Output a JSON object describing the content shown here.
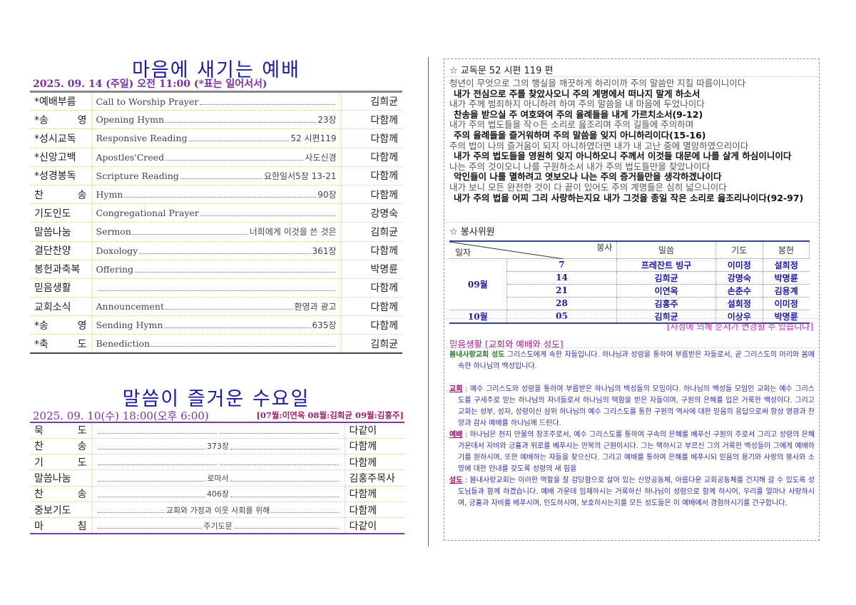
{
  "sunday": {
    "title": "마음에 새기는 예배",
    "date": "2025. 09. 14 (주일) 오전 11:00 (*표는 일어서서)",
    "rows": [
      {
        "label": "*예배부름",
        "en": "Call to Worship Prayer",
        "detail": "",
        "who": "김희균"
      },
      {
        "label": "*송 영",
        "en": "Opening Hymn",
        "detail": "23장",
        "who": "다함께"
      },
      {
        "label": "*성시교독",
        "en": "Responsive Reading",
        "detail": "52 시편119",
        "who": "다함께"
      },
      {
        "label": "*신앙고백",
        "en": "Apostles'Creed",
        "detail": "사도신경",
        "who": "다함께"
      },
      {
        "label": "*성경봉독",
        "en": "Scripture Reading",
        "detail": "요한일서5장 13-21",
        "who": "다함께"
      },
      {
        "label": "찬 송",
        "en": "Hymn",
        "detail": "90장",
        "who": "다함께"
      },
      {
        "label": "기도인도",
        "en": "Congregational Prayer",
        "detail": "",
        "who": "강명숙"
      },
      {
        "label": "말씀나눔",
        "en": "Sermon",
        "detail": "너희에게 이것을 쓴 것은",
        "who": "김희균"
      },
      {
        "label": "결단찬양",
        "en": "Doxology",
        "detail": "361장",
        "who": "다함께"
      },
      {
        "label": "봉헌과축복",
        "en": "Offering",
        "detail": "",
        "who": "박명륜"
      },
      {
        "label": "믿음생활",
        "en": "",
        "detail": "",
        "who": "다함께"
      },
      {
        "label": "교회소식",
        "en": "Announcement",
        "detail": "환영과 광고",
        "who": "다함께"
      },
      {
        "label": "*송 영",
        "en": "Sending Hymn",
        "detail": "635장",
        "who": "다함께"
      },
      {
        "label": "*축 도",
        "en": "Benediction",
        "detail": "",
        "who": "김희균"
      }
    ]
  },
  "wednesday": {
    "title": "말씀이 즐거운 수요일",
    "date": "2025. 09. 10(수) 18:00(오후 6:00)",
    "leaders": "[07월:이연옥 08월:김희균 09월:김홍주]",
    "rows": [
      {
        "label": "묵 도",
        "detail": "",
        "who": "다같이"
      },
      {
        "label": "찬 송",
        "detail": "373장",
        "who": "다함께"
      },
      {
        "label": "기 도",
        "detail": "",
        "who": "다함께"
      },
      {
        "label": "말씀나눔",
        "detail": "로마서",
        "who": "김홍주목사"
      },
      {
        "label": "찬 송",
        "detail": "406장",
        "who": "다함께"
      },
      {
        "label": "중보기도",
        "detail": "교회와 가정과 이웃 사회를 위해",
        "who": "다함께"
      },
      {
        "label": "마 침",
        "detail": "주기도문",
        "who": "다같이"
      }
    ]
  },
  "reading": {
    "header": "☆ 교독문 52   시편 119 편",
    "lines": [
      {
        "t": "청년이 무엇으로 그의 행실을 깨끗하게 하리이까 주의 말씀만 지킬 따름이니이다",
        "bold": false
      },
      {
        "t": "내가 전심으로 주를 찾았사오니 주의 계명에서 떠나지 말게 하소서",
        "bold": true
      },
      {
        "t": "내가 주께 범죄하지 아니하려 하여 주의 말씀을 내 마음에 두었나이다",
        "bold": false
      },
      {
        "t": "찬송을 받으실 주 여호와여 주의 율례들을 내게 가르치소서(9-12)",
        "bold": true
      },
      {
        "t": "내가 주의 법도들을 작ㅇ든 소리로 읊조리며 주의 길들에 주의하며",
        "bold": false
      },
      {
        "t": "주의 율례들을 즐거워하며 주의 말씀을 잊지 아니하리이다(15-16)",
        "bold": true
      },
      {
        "t": "주의 법이 나의 즐거움이 되지 아니하였더면 내가 내 고난 중에 멸망하였으리이다",
        "bold": false
      },
      {
        "t": "내가 주의 법도들을 영원히 잊지 아니하오니 주께서 이것들 대문에 나를 살게 하심이니이다",
        "bold": true
      },
      {
        "t": "나는 주의 것이오니 나를 구원하소서 내가 주의 법도들만을 찾았나이다",
        "bold": false
      },
      {
        "t": "악인들이 나를 멸하려고 엿보오나 나는 주의 증거들만을 생각하겠나이다",
        "bold": true
      },
      {
        "t": "내가 보니 모든 완전한 것이 다 끝이 있어도 주의 계명들은 심히 넓으니이다",
        "bold": false
      },
      {
        "t": "내가 주의 법을 어찌 그리 사랑하는지요 내가 그것을 종일 작은 소리로 읊조리나이다(92-97)",
        "bold": true
      }
    ]
  },
  "volunteers": {
    "header": "☆ 봉사위원",
    "corner_top": "봉사",
    "corner_bottom": "일자",
    "columns": [
      "밀씀",
      "기도",
      "봉헌"
    ],
    "rows": [
      {
        "month": "09월",
        "day": "7",
        "word": "프레잔트 빙구",
        "prayer": "이미정",
        "offering": "설희정"
      },
      {
        "month": "",
        "day": "14",
        "word": "김희균",
        "prayer": "강명숙",
        "offering": "박명륜"
      },
      {
        "month": "",
        "day": "21",
        "word": "이연옥",
        "prayer": "손춘수",
        "offering": "김용계"
      },
      {
        "month": "",
        "day": "28",
        "word": "김홍주",
        "prayer": "설희정",
        "offering": "이미정"
      },
      {
        "month": "10월",
        "day": "05",
        "word": "김희균",
        "prayer": "이상우",
        "offering": "박명륜"
      }
    ],
    "notice": "[사정에 의해 순서가 변경될 수 있습니다]"
  },
  "faith": {
    "header": "믿음생활 [교회와 예배와 성도]",
    "intro_kw": "봄내사랑교회 성도",
    "intro": " 그리스도에게 속한 자들입니다. 하나님과 성령을 통하여 부름받은 자들로서, 곧 그리스도의 머리와 몸에 속한 하나님의 백성입니다.",
    "items": [
      {
        "kw": "교회",
        "text": " : 예수 그리스도와 성령을 통하여 부름받은 하나님의 백성들의 모임이다. 하나님의 백성들 모임인 교회는 예수 그리스도를 구세주로 믿는 하나님의 자녀들로서 하나님의 택함을 받은 자들이며, 구원의 은혜를 입은 거룩한 백성이다. 그리고 교회는 성부, 성자, 성령이신 삼위 하나님의 예수 그리스도를 통한 구원의 역사에 대한 믿음의 응답으로써 항상 영광과 찬양과 감사 예배를 하나님께 드린다."
      },
      {
        "kw": "예배",
        "text": "  : 하나님은 천지 만물의 창조주로서, 예수 그리스도를 통하여 구속의 은혜를 베푸신 구원의 주로서 그리고 성령의 은혜 가운데서 자비와 긍휼과 위로를 베푸시는 만복의 근원이시다. 그는 택하시고 부르신 그의 거룩한 백성들이 그에게 예배하기를 원하시며, 또한 예배하는 자들을 찾으신다. 그리고 예배를 통하여 은혜를 베푸시되 믿음의 용기와 사랑의 봉사와 소망에 대한 인내를 갖도록 성령의 새 힘을"
      },
      {
        "kw": "성도",
        "text": " : 봄내사랑교회는 이러한 역할을 잘 감당함으로 살아 있는 신앙공동체, 아름다운 교회공동체를 건지해 갈 수 있도록 성도님들과 함께 하겠습니다. 예배 가운데 임재하시는 거룩하신 하나님이 성령으로 함께 하시어, 우리를 얼마나 사랑하시며, 긍휼과 자비를 베푸시며, 인도하시며, 보호하시는지를 모든 성도들은 이 예배에서 경험하시기를 간구합니다."
      }
    ]
  },
  "colors": {
    "title": "#1a1aa8",
    "date": "#7a2fa6",
    "notice": "#c030c0"
  }
}
